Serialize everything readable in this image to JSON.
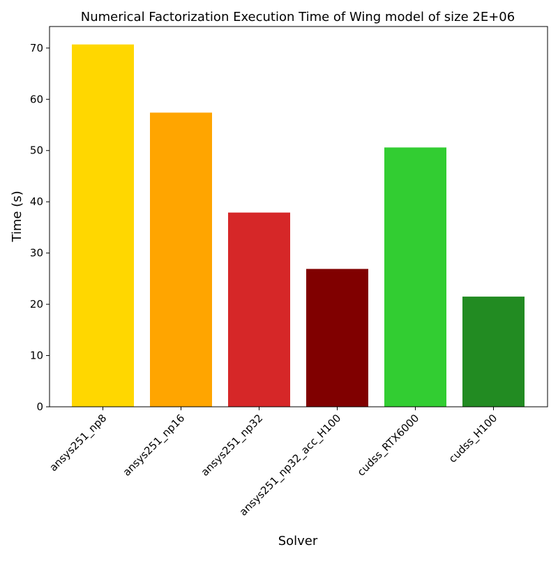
{
  "chart_data": {
    "type": "bar",
    "title": "Numerical Factorization Execution Time of Wing model of size 2E+06",
    "xlabel": "Solver",
    "ylabel": "Time (s)",
    "categories": [
      "ansys251_np8",
      "ansys251_np16",
      "ansys251_np32",
      "ansys251_np32_acc_H100",
      "cudss_RTX6000",
      "cudss_H100"
    ],
    "values": [
      70.7,
      57.4,
      37.9,
      26.9,
      50.6,
      21.5
    ],
    "colors": [
      "#FFD700",
      "#FFA500",
      "#D62728",
      "#800000",
      "#32CD32",
      "#228B22"
    ],
    "ylim": [
      0,
      74.2
    ],
    "yticks": [
      0,
      10,
      20,
      30,
      40,
      50,
      60,
      70
    ],
    "grid": false,
    "legend": "none"
  }
}
